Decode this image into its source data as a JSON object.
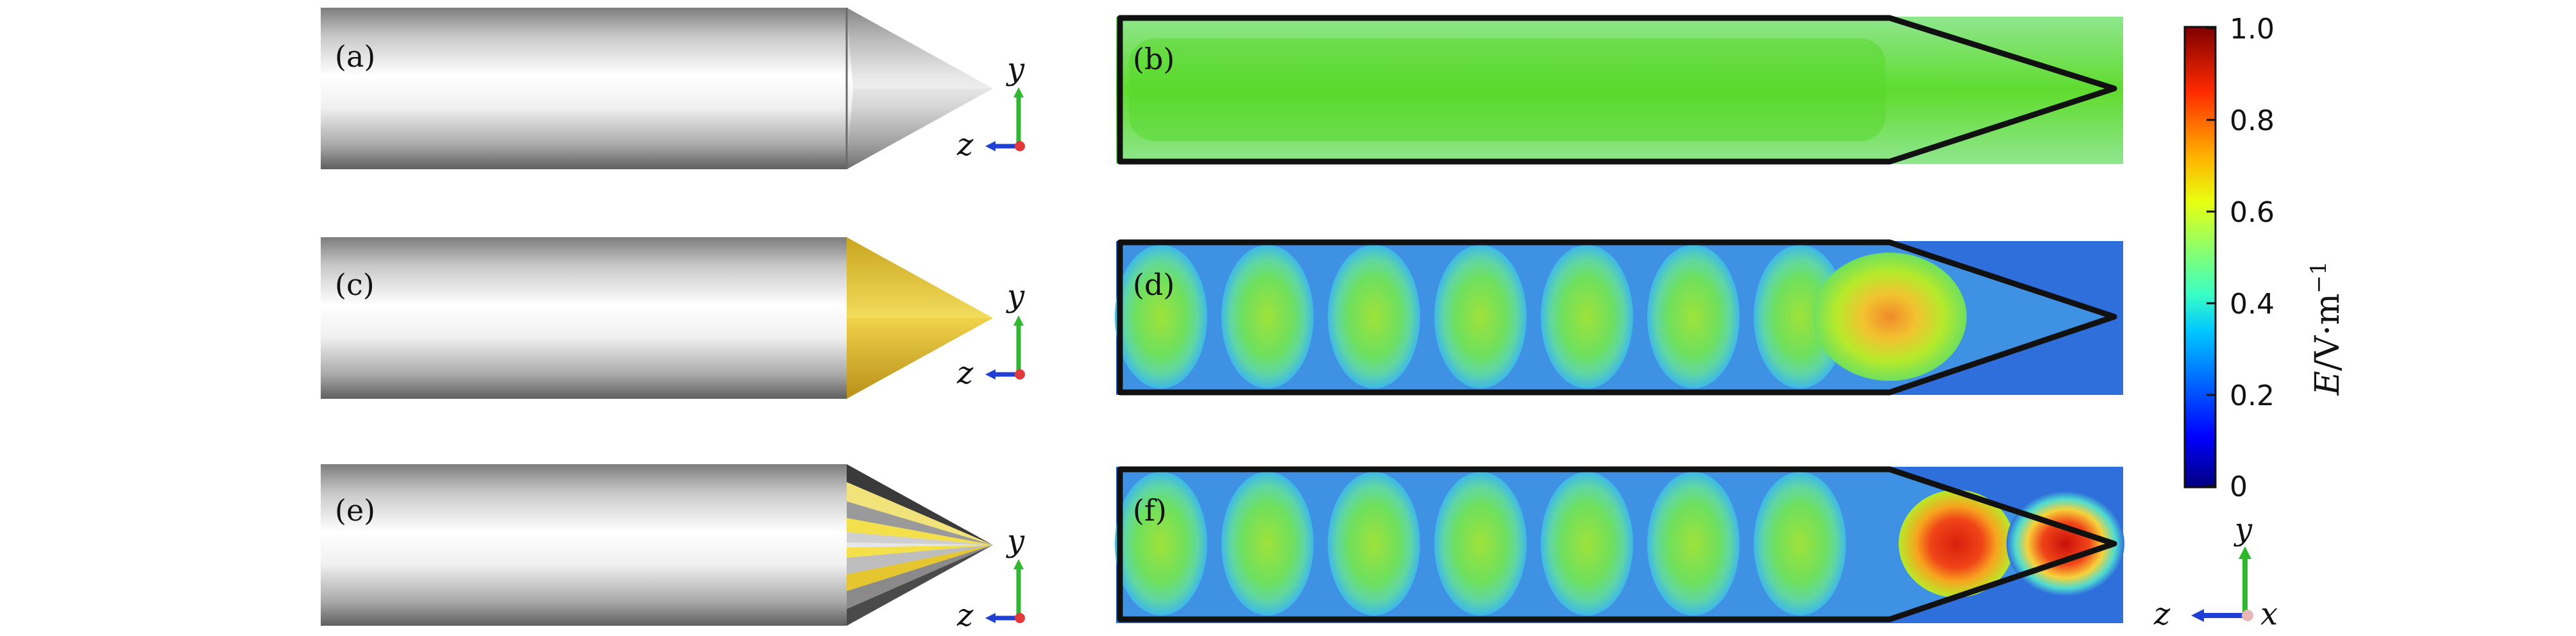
{
  "panels": {
    "a": "(a)",
    "b": "(b)",
    "c": "(c)",
    "d": "(d)",
    "e": "(e)",
    "f": "(f)"
  },
  "axes": {
    "y": "y",
    "z": "z",
    "x": "x"
  },
  "colorbar": {
    "title_italic": "E",
    "title_rest": "/V·m",
    "title_exp": "−1",
    "ticks": [
      "1.0",
      "0.8",
      "0.6",
      "0.4",
      "0.2",
      "0"
    ]
  },
  "colors": {
    "rod_edge": "#9a9a9a",
    "gold_cone": "#e8c43a",
    "field_green": "#6ee05e",
    "field_blue": "#2f6fdc",
    "hotspot": "#e23a18"
  },
  "chart_data": {
    "type": "heatmap",
    "colorbar_range": [
      0,
      1.0
    ],
    "colorbar_ticks": [
      1.0,
      0.8,
      0.6,
      0.4,
      0.2,
      0
    ],
    "colorbar_label": "E/V·m⁻¹",
    "panels": [
      "(b)",
      "(d)",
      "(f)"
    ]
  }
}
